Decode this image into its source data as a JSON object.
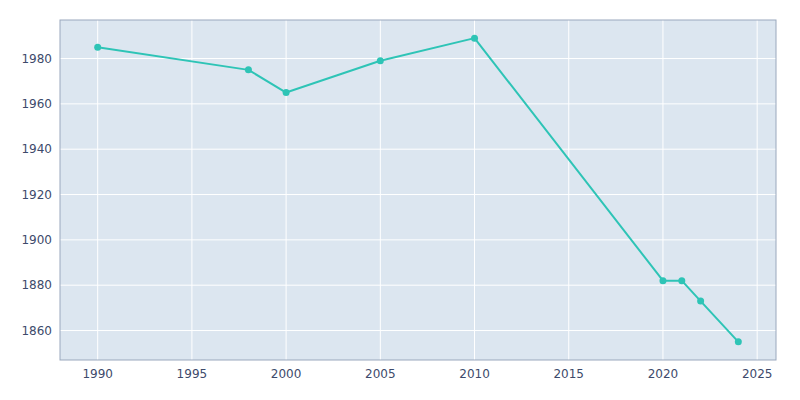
{
  "chart_data": {
    "type": "line",
    "x": [
      1990,
      1998,
      2000,
      2005,
      2010,
      2020,
      2021,
      2022,
      2024
    ],
    "values": [
      1985,
      1975,
      1965,
      1979,
      1989,
      1882,
      1882,
      1873,
      1855
    ],
    "color": "#2EC4B6",
    "marker": "circle",
    "xlim": [
      1988,
      2026
    ],
    "ylim": [
      1847,
      1997
    ],
    "xticks": [
      1990,
      1995,
      2000,
      2005,
      2010,
      2015,
      2020,
      2025
    ],
    "yticks": [
      1860,
      1880,
      1900,
      1920,
      1940,
      1960,
      1980
    ],
    "grid": true
  }
}
